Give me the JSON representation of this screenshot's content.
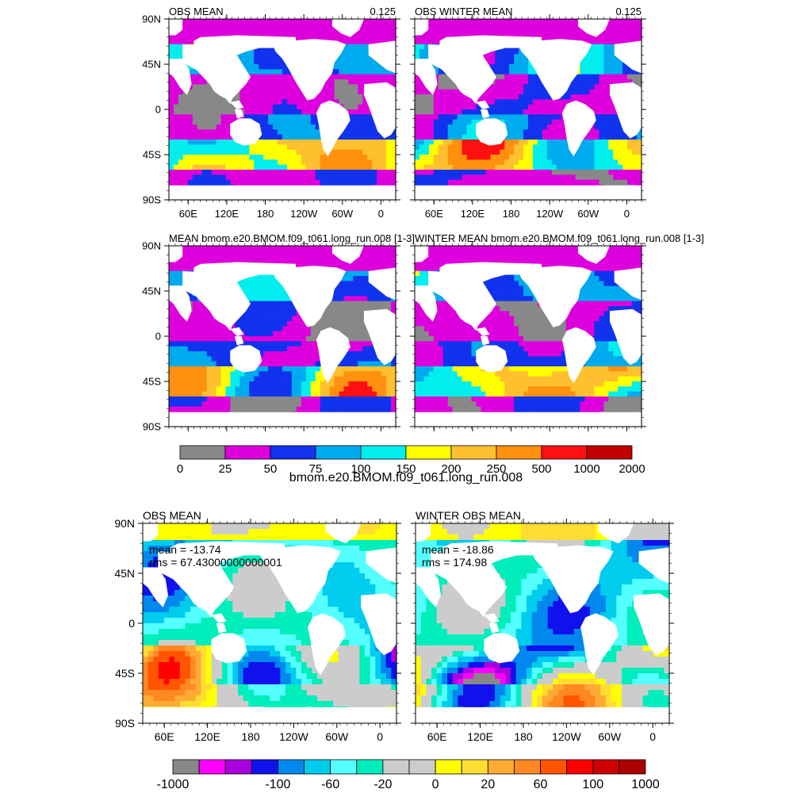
{
  "figure": {
    "panels": [
      {
        "id": "p1",
        "title_left": "OBS MEAN",
        "title_right": "0.125",
        "stat_mean": "",
        "stat_rms": "",
        "palette": "depth"
      },
      {
        "id": "p2",
        "title_left": "OBS WINTER MEAN",
        "title_right": "0.125",
        "stat_mean": "",
        "stat_rms": "",
        "palette": "depth"
      },
      {
        "id": "p3",
        "title_left": "MEAN bmom.e20.BMOM.f09_t061.long_run.008 [1-3]",
        "title_right": "",
        "stat_mean": "",
        "stat_rms": "",
        "palette": "depth"
      },
      {
        "id": "p4",
        "title_left": "WINTER MEAN bmom.e20.BMOM.f09_t061.long_run.008 [1-3]",
        "title_right": "",
        "stat_mean": "",
        "stat_rms": "",
        "palette": "depth"
      },
      {
        "id": "p5",
        "title_left": "OBS MEAN",
        "title_right": "",
        "stat_mean": "mean = -13.74",
        "stat_rms": "rms = 67.43000000000001",
        "palette": "diff"
      },
      {
        "id": "p6",
        "title_left": "WINTER OBS MEAN",
        "title_right": "",
        "stat_mean": "mean = -18.86",
        "stat_rms": "rms = 174.98",
        "palette": "diff"
      }
    ],
    "lat_labels": [
      "90N",
      "45N",
      "0",
      "45S",
      "90S"
    ],
    "lon_labels": [
      "60E",
      "120E",
      "180",
      "120W",
      "60W",
      "0"
    ],
    "colorbar_depth": {
      "title": "bmom.e20.BMOM.f09_t061.long_run.008",
      "colors": [
        "#888888",
        "#dd00dd",
        "#1133ee",
        "#00aaee",
        "#00eeee",
        "#ffff00",
        "#ffc030",
        "#ff9010",
        "#ff1010",
        "#c00000"
      ],
      "labels": [
        "0",
        "25",
        "50",
        "75",
        "100",
        "150",
        "200",
        "250",
        "500",
        "1000",
        "2000"
      ]
    },
    "colorbar_diff": {
      "colors": [
        "#888888",
        "#ff00ff",
        "#aa00dd",
        "#1111ee",
        "#0088ee",
        "#00ccee",
        "#55ffff",
        "#00eebb",
        "#cccccc",
        "#cccccc",
        "#ffff00",
        "#ffdd33",
        "#ffaa33",
        "#ff8822",
        "#ff5500",
        "#ff0000",
        "#cc0000",
        "#aa0000"
      ],
      "labels": [
        "-1000",
        "-100",
        "-60",
        "-20",
        "0",
        "20",
        "60",
        "100",
        "1000"
      ]
    }
  }
}
